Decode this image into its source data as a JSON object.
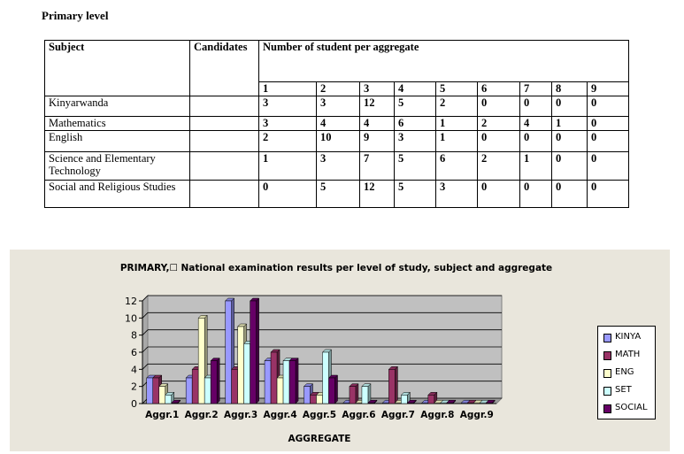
{
  "heading": "Primary level",
  "table": {
    "col_subject": "Subject",
    "col_candidates": "Candidates",
    "col_aggregate": "Number of student per aggregate",
    "aggregates": [
      "1",
      "2",
      "3",
      "4",
      "5",
      "6",
      "7",
      "8",
      "9"
    ],
    "rows": [
      {
        "subject": "Kinyarwanda",
        "candidates": "",
        "values": [
          "3",
          "3",
          "12",
          "5",
          "2",
          "0",
          "0",
          "0",
          "0"
        ]
      },
      {
        "subject": "Mathematics",
        "candidates": "",
        "values": [
          "3",
          "4",
          "4",
          "6",
          "1",
          "2",
          "4",
          "1",
          "0"
        ]
      },
      {
        "subject": "English",
        "candidates": "",
        "values": [
          "2",
          "10",
          "9",
          "3",
          "1",
          "0",
          "0",
          "0",
          "0"
        ]
      },
      {
        "subject": "Science and Elementary Technology",
        "candidates": "",
        "values": [
          "1",
          "3",
          "7",
          "5",
          "6",
          "2",
          "1",
          "0",
          "0"
        ]
      },
      {
        "subject": "Social and Religious Studies",
        "candidates": "",
        "values": [
          "0",
          "5",
          "12",
          "5",
          "3",
          "0",
          "0",
          "0",
          "0"
        ]
      }
    ]
  },
  "chart_data": {
    "type": "bar",
    "title": "PRIMARY,☐ National examination results per level of study, subject and aggregate",
    "xlabel": "AGGREGATE",
    "ylabel": "",
    "categories": [
      "Aggr.1",
      "Aggr.2",
      "Aggr.3",
      "Aggr.4",
      "Aggr.5",
      "Aggr.6",
      "Aggr.7",
      "Aggr.8",
      "Aggr.9"
    ],
    "ylim": [
      0,
      12
    ],
    "yticks": [
      "0",
      "2",
      "4",
      "6",
      "8",
      "10",
      "12"
    ],
    "grid": true,
    "legend_position": "right",
    "series": [
      {
        "name": "KINYA",
        "color": "#9999ff",
        "values": [
          3,
          3,
          12,
          5,
          2,
          0,
          0,
          0,
          0
        ]
      },
      {
        "name": "MATH",
        "color": "#993366",
        "values": [
          3,
          4,
          4,
          6,
          1,
          2,
          4,
          1,
          0
        ]
      },
      {
        "name": "ENG",
        "color": "#ffffcc",
        "values": [
          2,
          10,
          9,
          3,
          1,
          0,
          0,
          0,
          0
        ]
      },
      {
        "name": "SET",
        "color": "#ccffff",
        "values": [
          1,
          3,
          7,
          5,
          6,
          2,
          1,
          0,
          0
        ]
      },
      {
        "name": "SOCIAL",
        "color": "#660066",
        "values": [
          0,
          5,
          12,
          5,
          3,
          0,
          0,
          0,
          0
        ]
      }
    ]
  }
}
